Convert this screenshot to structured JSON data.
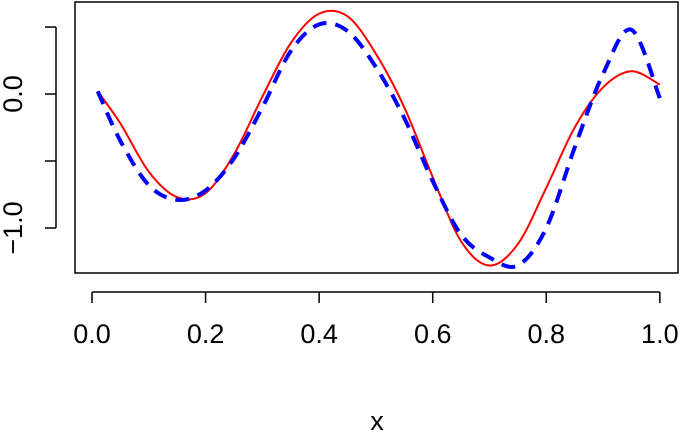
{
  "chart_data": {
    "type": "line",
    "xlabel": "x",
    "x": [
      0.01,
      0.05,
      0.1,
      0.15,
      0.2,
      0.25,
      0.3,
      0.35,
      0.4,
      0.45,
      0.5,
      0.55,
      0.6,
      0.65,
      0.7,
      0.75,
      0.8,
      0.85,
      0.9,
      0.95,
      1.0
    ],
    "series": [
      {
        "color": "#ff0000",
        "dash": false,
        "values": [
          0.02,
          -0.22,
          -0.58,
          -0.77,
          -0.74,
          -0.45,
          -0.02,
          0.38,
          0.6,
          0.58,
          0.3,
          -0.1,
          -0.62,
          -1.1,
          -1.28,
          -1.12,
          -0.7,
          -0.25,
          0.05,
          0.17,
          0.07
        ]
      },
      {
        "color": "#0000ff",
        "dash": true,
        "values": [
          0.02,
          -0.35,
          -0.68,
          -0.79,
          -0.72,
          -0.48,
          -0.1,
          0.32,
          0.52,
          0.47,
          0.2,
          -0.18,
          -0.65,
          -1.05,
          -1.22,
          -1.28,
          -1.0,
          -0.4,
          0.15,
          0.48,
          -0.03
        ]
      }
    ],
    "xlim": [
      -0.03,
      1.032
    ],
    "ylim": [
      -1.336,
      0.687
    ],
    "xticks": [
      {
        "value": 0,
        "label": "0.0"
      },
      {
        "value": 0.2,
        "label": "0.2"
      },
      {
        "value": 0.4,
        "label": "0.4"
      },
      {
        "value": 0.6,
        "label": "0.6"
      },
      {
        "value": 0.8,
        "label": "0.8"
      },
      {
        "value": 1,
        "label": "1.0"
      }
    ],
    "yticks": [
      {
        "value": -1,
        "label": "−1.0"
      },
      {
        "value": 0,
        "label": "0.0"
      }
    ],
    "yticks_unlabeled": [
      -0.5,
      0.5
    ]
  }
}
